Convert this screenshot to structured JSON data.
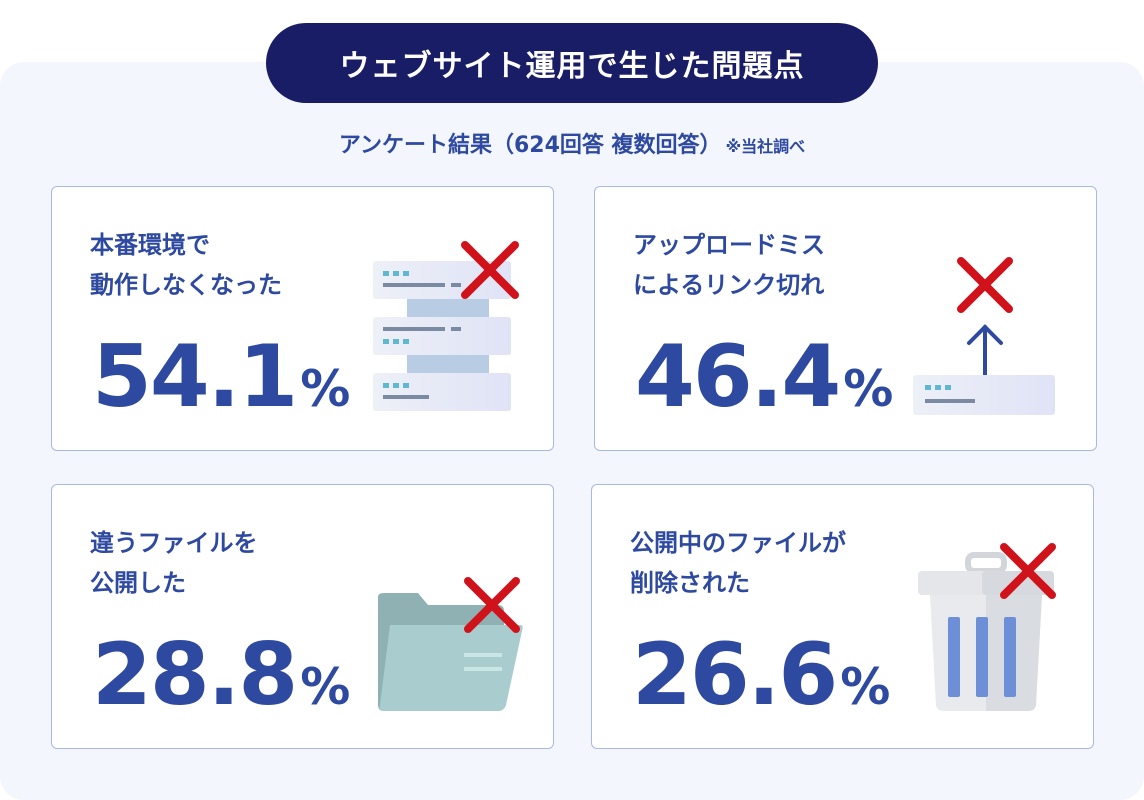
{
  "header": {
    "title": "ウェブサイト運用で生じた問題点",
    "subtitle": "アンケート結果（624回答 複数回答）",
    "note": "※当社調べ"
  },
  "cards": [
    {
      "label_line1": "本番環境で",
      "label_line2": "動作しなくなった",
      "value": "54.1",
      "unit": "%",
      "icon": "server-stack-icon"
    },
    {
      "label_line1": "アップロードミス",
      "label_line2": "によるリンク切れ",
      "value": "46.4",
      "unit": "%",
      "icon": "upload-arrow-icon"
    },
    {
      "label_line1": "違うファイルを",
      "label_line2": "公開した",
      "value": "28.8",
      "unit": "%",
      "icon": "folder-icon"
    },
    {
      "label_line1": "公開中のファイルが",
      "label_line2": "削除された",
      "value": "26.6",
      "unit": "%",
      "icon": "trash-icon"
    }
  ],
  "colors": {
    "navy": "#181d66",
    "accent_blue": "#2e49a0",
    "cross_red": "#d0121b",
    "card_border": "#aab9e3",
    "panel_bg": "#f3f6fc"
  }
}
